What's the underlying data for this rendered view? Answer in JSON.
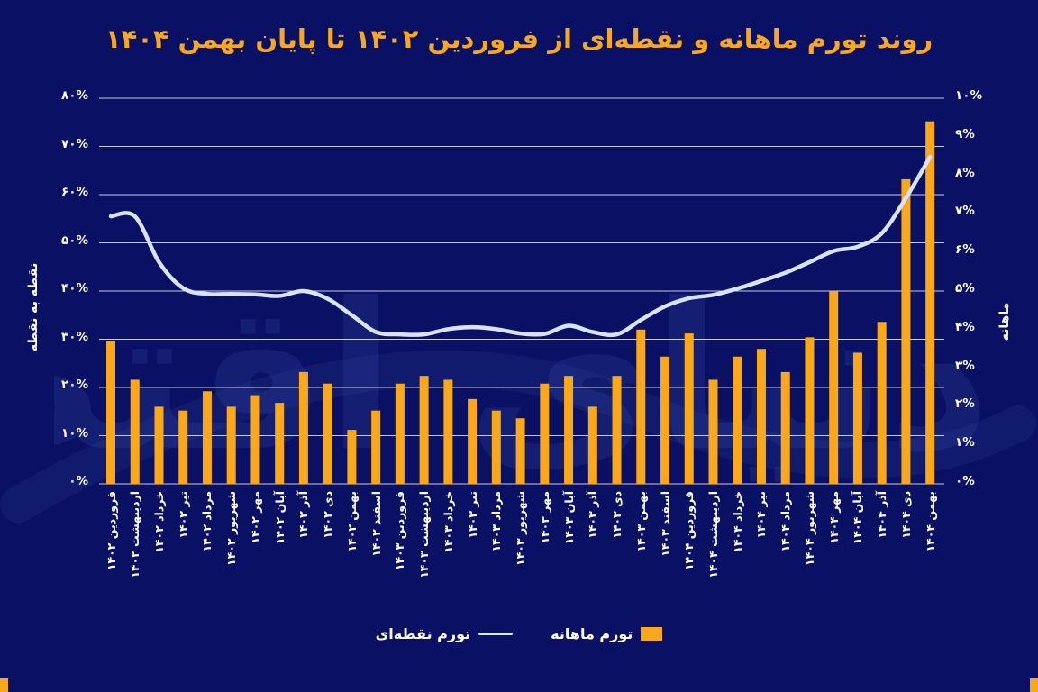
{
  "title": "روند تورم ماهانه و نقطه‌ای از فروردین ۱۴۰۲ تا پایان بهمن ۱۴۰۴",
  "watermark_text": "دنیای اقتصاد",
  "colors": {
    "background": "#0A1164",
    "bar": "#F9A71B",
    "line": "#D9E3F8",
    "title": "#F7A823",
    "grid": "#E9EDF5",
    "text": "#FFFFFF",
    "watermark": "#3A4FA8"
  },
  "left_axis": {
    "title": "نقطه به نقطه",
    "min": 0,
    "max": 80,
    "step": 10,
    "labels": [
      "۰%",
      "۱۰%",
      "۲۰%",
      "۳۰%",
      "۴۰%",
      "۵۰%",
      "۶۰%",
      "۷۰%",
      "۸۰%"
    ]
  },
  "right_axis": {
    "title": "ماهانه",
    "min": 0,
    "max": 10,
    "step": 1,
    "labels": [
      "۰%",
      "۱%",
      "۲%",
      "۳%",
      "۴%",
      "۵%",
      "۶%",
      "۷%",
      "۸%",
      "۹%",
      "۱۰%"
    ]
  },
  "legend": [
    {
      "label": "تورم ماهانه",
      "type": "bar"
    },
    {
      "label": "تورم نقطه‌ای",
      "type": "line"
    }
  ],
  "chart_data": {
    "type": "bar+line combo",
    "grid": true,
    "legend_position": "bottom",
    "title": "روند تورم ماهانه و نقطه‌ای از فروردین ۱۴۰۲ تا پایان بهمن ۱۴۰۴",
    "left_ylabel": "نقطه به نقطه",
    "right_ylabel": "ماهانه",
    "left_ylim": [
      0,
      80
    ],
    "right_ylim": [
      0,
      10
    ],
    "categories": [
      "فروردین ۱۴۰۲",
      "اردیبهشت ۱۴۰۲",
      "خرداد ۱۴۰۲",
      "تیر ۱۴۰۲",
      "مرداد ۱۴۰۲",
      "شهریور ۱۴۰۲",
      "مهر ۱۴۰۲",
      "آبان ۱۴۰۲",
      "آذر ۱۴۰۲",
      "دی ۱۴۰۲",
      "بهمن ۱۴۰۲",
      "اسفند ۱۴۰۲",
      "فروردین ۱۴۰۳",
      "اردیبهشت ۱۴۰۳",
      "خرداد ۱۴۰۳",
      "تیر ۱۴۰۳",
      "مرداد ۱۴۰۳",
      "شهریور ۱۴۰۳",
      "مهر ۱۴۰۳",
      "آبان ۱۴۰۳",
      "آذر ۱۴۰۳",
      "دی ۱۴۰۳",
      "بهمن ۱۴۰۳",
      "اسفند ۱۴۰۳",
      "فروردین ۱۴۰۴",
      "اردیبهشت ۱۴۰۴",
      "خرداد ۱۴۰۴",
      "تیر ۱۴۰۴",
      "مرداد ۱۴۰۴",
      "شهریور ۱۴۰۴",
      "مهر ۱۴۰۴",
      "آبان ۱۴۰۴",
      "آذر ۱۴۰۴",
      "دی ۱۴۰۴",
      "بهمن ۱۴۰۴"
    ],
    "series": [
      {
        "name": "تورم ماهانه",
        "type": "bar",
        "axis": "right",
        "unit": "%",
        "values": [
          3.7,
          2.7,
          2.0,
          1.9,
          2.4,
          2.0,
          2.3,
          2.1,
          2.9,
          2.6,
          1.4,
          1.9,
          2.6,
          2.8,
          2.7,
          2.2,
          1.9,
          1.7,
          2.6,
          2.8,
          2.0,
          2.8,
          4.0,
          3.3,
          3.9,
          2.7,
          3.3,
          3.5,
          2.9,
          3.8,
          5.0,
          3.4,
          4.2,
          7.9,
          9.4
        ]
      },
      {
        "name": "تورم نقطه‌ای",
        "type": "line",
        "axis": "left",
        "unit": "%",
        "values": [
          55.5,
          55.5,
          46.0,
          40.6,
          39.4,
          39.4,
          39.3,
          39.0,
          40.0,
          38.4,
          35.0,
          31.5,
          31.0,
          31.0,
          32.1,
          32.5,
          32.1,
          31.2,
          31.1,
          32.8,
          31.5,
          31.0,
          34.0,
          36.8,
          38.5,
          39.2,
          40.5,
          42.1,
          43.8,
          46.0,
          48.3,
          49.2,
          52.0,
          59.3,
          67.8
        ]
      }
    ]
  }
}
